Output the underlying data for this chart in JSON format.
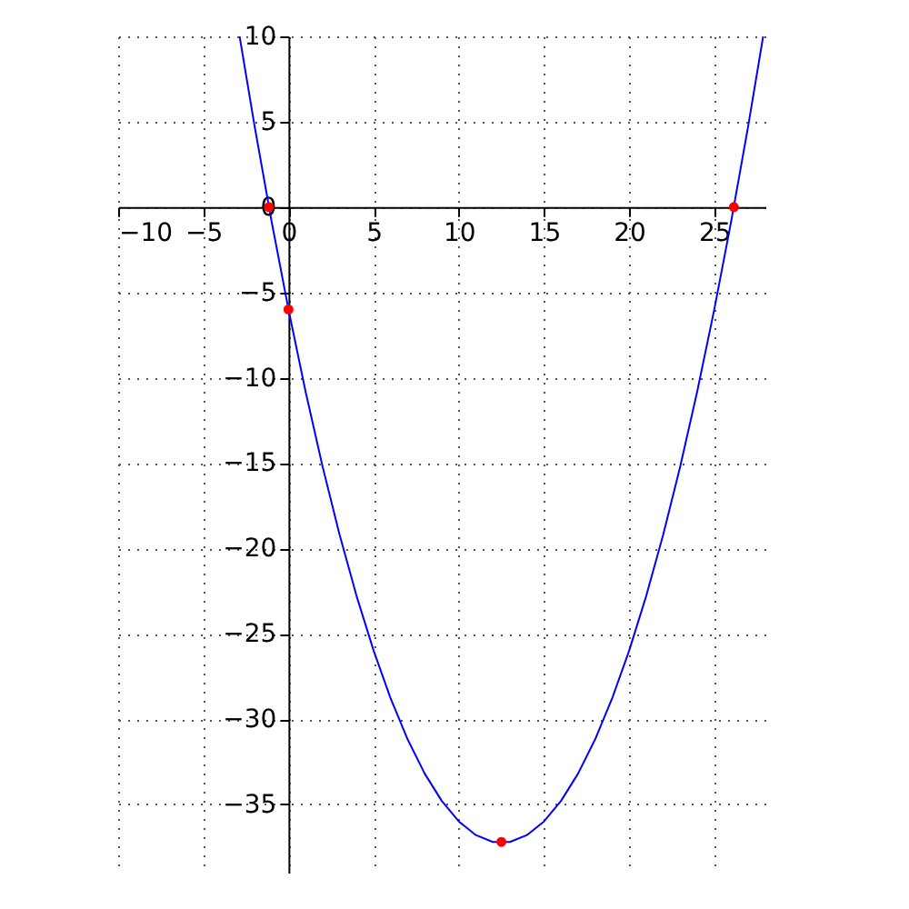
{
  "chart_data": {
    "type": "line",
    "xlim": [
      -10,
      28
    ],
    "ylim": [
      -39,
      10
    ],
    "xticks": [
      -10,
      -5,
      0,
      5,
      10,
      15,
      20,
      25
    ],
    "yticks": [
      -35,
      -30,
      -25,
      -20,
      -15,
      -10,
      -5,
      0,
      5,
      10
    ],
    "grid": true,
    "line_style": "solid",
    "series": [
      {
        "color": "#0000ff",
        "marker": "none",
        "x": [
          -2.87,
          -2,
          -1,
          0,
          1,
          2,
          3,
          4,
          5,
          6,
          7,
          8,
          9,
          10,
          11,
          12,
          12.5,
          13,
          14,
          15,
          16,
          17,
          18,
          19,
          20,
          21,
          22,
          23,
          24,
          25,
          26,
          27,
          27.87
        ],
        "values": [
          10,
          4.8,
          -0.8,
          -6,
          -10.8,
          -15.2,
          -19.2,
          -22.8,
          -26,
          -28.8,
          -31.2,
          -33.2,
          -34.8,
          -36,
          -36.8,
          -37.2,
          -37.2,
          -37.2,
          -36.8,
          -36,
          -34.8,
          -33.2,
          -31.2,
          -28.8,
          -26,
          -22.8,
          -19.2,
          -15.2,
          -10.8,
          -6,
          -0.8,
          4.8,
          10
        ]
      },
      {
        "type": "scatter",
        "marker": "circle",
        "color": "#ff0000",
        "x": [
          -1.15,
          0,
          12.5,
          26.15
        ],
        "values": [
          0,
          -6,
          -37.2,
          0
        ]
      }
    ]
  }
}
